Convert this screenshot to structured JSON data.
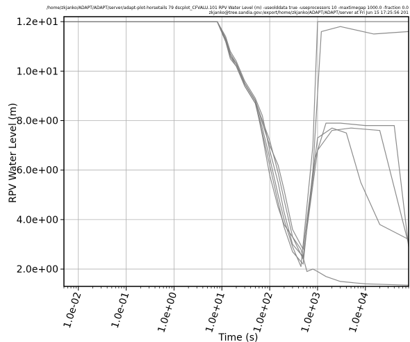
{
  "header_lines": [
    "/home/zkjanko/ADAPT/ADAPT/server/adapt-plot-horsetails 79 dscplot_CFVALU.101 RPV Water Level (m) -useolddata true -useprocessors 10 -maxtimegap 1000.0 -fraction 0.0",
    "zkjanko@tree.sandia.gov:/export/home/zkjanko/ADAPT/ADAPT/server at Fri Jun 15 17:25:56 201"
  ],
  "chart_data": {
    "type": "line",
    "title": "",
    "xlabel": "Time (s)",
    "ylabel": "RPV Water Level (m)",
    "x_scale": "log",
    "xlim": [
      0.005,
      80000
    ],
    "ylim": [
      1.3,
      12.2
    ],
    "grid": true,
    "line_color": "#7f7f7f",
    "x_ticks": [
      {
        "value": 0.01,
        "label": "1.0e-02"
      },
      {
        "value": 0.1,
        "label": "1.0e-01"
      },
      {
        "value": 1,
        "label": "1.0e+00"
      },
      {
        "value": 10,
        "label": "1.0e+01"
      },
      {
        "value": 100,
        "label": "1.0e+02"
      },
      {
        "value": 1000,
        "label": "1.0e+03"
      },
      {
        "value": 10000,
        "label": "1.0e+04"
      }
    ],
    "y_ticks": [
      {
        "value": 2,
        "label": "2.0e+00"
      },
      {
        "value": 4,
        "label": "4.0e+00"
      },
      {
        "value": 6,
        "label": "6.0e+00"
      },
      {
        "value": 8,
        "label": "8.0e+00"
      },
      {
        "value": 10,
        "label": "1.0e+01"
      },
      {
        "value": 12,
        "label": "1.2e+01"
      }
    ],
    "series": [
      {
        "x": [
          0.005,
          8,
          12,
          15,
          20,
          30,
          50,
          70,
          100,
          150,
          200,
          300,
          500,
          900,
          1500,
          3000,
          10000,
          40000,
          80000
        ],
        "y": [
          12.0,
          12.0,
          11.3,
          10.7,
          10.3,
          9.5,
          8.8,
          8.0,
          7.2,
          5.9,
          4.8,
          3.3,
          2.4,
          6.5,
          7.9,
          7.9,
          7.8,
          7.8,
          2.9
        ]
      },
      {
        "x": [
          0.005,
          8,
          12,
          15,
          20,
          30,
          50,
          70,
          100,
          150,
          200,
          300,
          450,
          800,
          1000,
          3000,
          20000,
          80000
        ],
        "y": [
          12.0,
          12.0,
          11.2,
          10.5,
          10.2,
          9.4,
          8.7,
          7.7,
          6.5,
          5.0,
          4.0,
          2.9,
          2.1,
          7.0,
          12.0,
          12.0,
          12.0,
          12.0
        ]
      },
      {
        "x": [
          0.005,
          8,
          12,
          15,
          20,
          30,
          50,
          70,
          100,
          150,
          200,
          300,
          500,
          1000,
          2000,
          5000,
          20000,
          80000
        ],
        "y": [
          12.0,
          12.0,
          11.4,
          10.8,
          10.4,
          9.6,
          8.9,
          8.2,
          6.8,
          5.5,
          4.3,
          3.0,
          2.5,
          6.8,
          7.6,
          7.7,
          7.6,
          3.0
        ]
      },
      {
        "x": [
          0.005,
          8,
          12,
          15,
          20,
          30,
          50,
          70,
          100,
          150,
          200,
          300,
          450,
          600,
          800,
          1000,
          1500,
          3000,
          10000,
          80000
        ],
        "y": [
          12.0,
          12.0,
          11.3,
          10.6,
          10.3,
          9.5,
          8.8,
          7.4,
          5.8,
          4.5,
          3.8,
          3.3,
          2.8,
          1.9,
          2.0,
          1.9,
          1.7,
          1.5,
          1.4,
          1.35
        ]
      },
      {
        "x": [
          0.005,
          8,
          12,
          15,
          20,
          30,
          50,
          70,
          100,
          150,
          200,
          300,
          500,
          700,
          1000,
          2000,
          4000,
          8000,
          20000,
          80000
        ],
        "y": [
          12.0,
          12.0,
          11.3,
          10.7,
          10.3,
          9.5,
          8.8,
          7.9,
          7.0,
          6.2,
          5.2,
          3.6,
          2.8,
          5.0,
          7.3,
          7.7,
          7.5,
          5.5,
          3.8,
          3.2
        ]
      },
      {
        "x": [
          0.005,
          8,
          12,
          15,
          20,
          30,
          50,
          70,
          100,
          150,
          200,
          300,
          500,
          800,
          1200,
          3000,
          15000,
          80000
        ],
        "y": [
          12.0,
          12.0,
          11.2,
          10.6,
          10.2,
          9.4,
          8.7,
          7.5,
          6.2,
          4.7,
          3.7,
          2.7,
          2.2,
          6.0,
          11.6,
          11.8,
          11.5,
          11.6
        ]
      }
    ]
  }
}
